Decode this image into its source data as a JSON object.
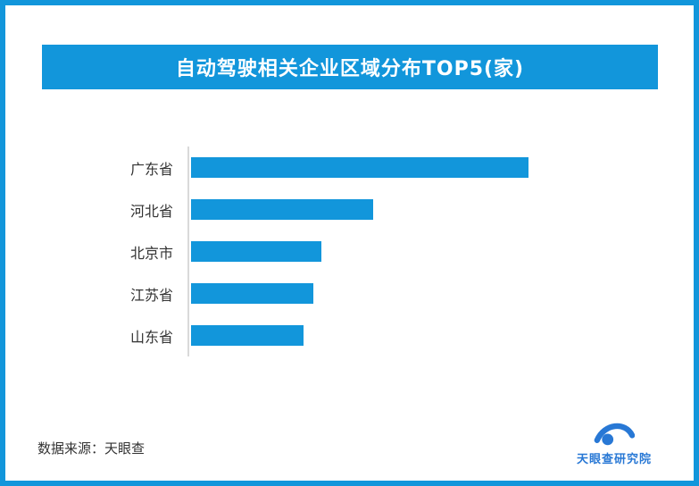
{
  "page": {
    "border_color": "#1296db",
    "background": "#ffffff"
  },
  "header": {
    "title": "自动驾驶相关企业区域分布TOP5(家)",
    "background": "#1296db",
    "text_color": "#ffffff"
  },
  "chart_data": {
    "type": "bar",
    "orientation": "horizontal",
    "title": "自动驾驶相关企业区域分布TOP5(家)",
    "categories": [
      "广东省",
      "河北省",
      "北京市",
      "江苏省",
      "山东省"
    ],
    "values": [
      378,
      204,
      146,
      137,
      126
    ],
    "value_labels_shown": false,
    "xlabel": "",
    "ylabel": "",
    "bar_color": "#1296db",
    "axis_line_color": "#d9d9d9",
    "grid": false,
    "legend": false
  },
  "footer": {
    "source_text": "数据来源：天眼查",
    "logo_text": "天眼查研究院",
    "logo_color": "#2878d5"
  }
}
